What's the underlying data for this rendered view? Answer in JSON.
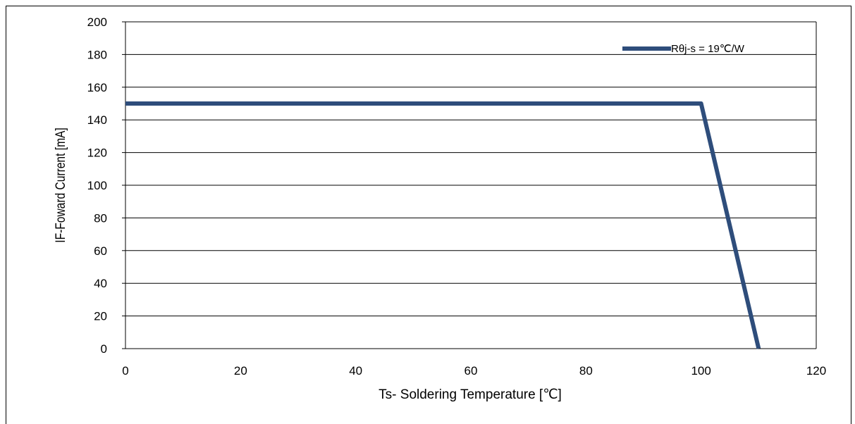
{
  "chart_data": {
    "type": "line",
    "title": "",
    "xlabel": "Ts- Soldering Temperature  [℃]",
    "ylabel": "IF-Foward Current  [mA]",
    "xlim": [
      0,
      120
    ],
    "ylim": [
      0,
      200
    ],
    "xticks": [
      "0",
      "20",
      "40",
      "60",
      "80",
      "100",
      "120"
    ],
    "yticks": [
      "0",
      "20",
      "40",
      "60",
      "80",
      "100",
      "120",
      "140",
      "160",
      "180",
      "200"
    ],
    "grid": "horizontal",
    "legend_position": "top-right",
    "series": [
      {
        "name": "Rθj-s = 19℃/W",
        "color": "#2e4d7b",
        "x": [
          0,
          100,
          110
        ],
        "y": [
          150,
          150,
          0
        ]
      }
    ]
  }
}
